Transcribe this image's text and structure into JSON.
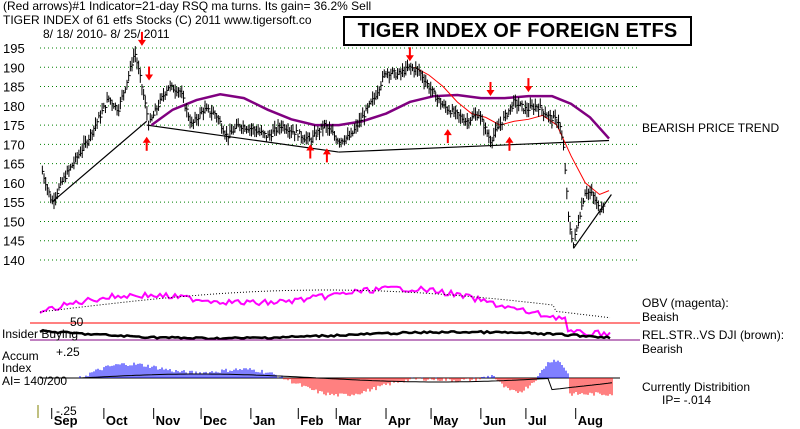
{
  "header": {
    "line1": "(Red arrows)#1 Indicator=21-day RSQ ma turns. Its gain= 36.2% Sell",
    "line2": "TIGER INDEX of  61 etfs Stocks  (C) 2011   www.tigersoft.co",
    "line3": "8/ 18/ 2010- 8/ 25/ 2011"
  },
  "title_box": "TIGER INDEX OF FOREIGN ETFS",
  "annotations": {
    "trend": "BEARISH PRICE TREND",
    "obv_title": "OBV (magenta):",
    "obv_status": "Beaish",
    "relstr_title": "REL.STR..VS DJI (brown):",
    "relstr_status": "Bearish",
    "insider": "Insider Buying",
    "accum_line1": "Accum",
    "accum_line2": "Index",
    "accum_value": "AI= 140/200",
    "dist_line1": "Currently Distribition",
    "dist_line2": "IP= -.014",
    "plus25": "+.25",
    "minus25": "-.25",
    "fifty": "50"
  },
  "colors": {
    "price_bar": "#000000",
    "ma_purple": "#800080",
    "obv_magenta": "#ff00ff",
    "relstr_brown": "#000000",
    "red_line": "#ff0000",
    "accum_blue": "#0000ff",
    "accum_red": "#ff0000",
    "grid_green": "#008000"
  },
  "chart_data": {
    "type": "line",
    "title": "TIGER INDEX OF FOREIGN ETFS",
    "xlabel": "",
    "ylabel": "",
    "ylim": [
      140,
      195
    ],
    "grid": true,
    "y_ticks": [
      140,
      145,
      150,
      155,
      160,
      165,
      170,
      175,
      180,
      185,
      190,
      195
    ],
    "x_ticks": [
      "Sep",
      "Oct",
      "Nov",
      "Dec",
      "Jan",
      "Feb",
      "Mar",
      "Apr",
      "May",
      "Jun",
      "Jul",
      "Aug"
    ],
    "x_tick_pos": [
      0.5,
      1.6,
      2.65,
      3.65,
      4.7,
      5.7,
      6.5,
      7.55,
      8.5,
      9.55,
      10.5,
      11.55
    ],
    "x_range": [
      0,
      12.4
    ],
    "price": {
      "x": [
        0.05,
        0.25,
        0.5,
        0.75,
        1.0,
        1.25,
        1.45,
        1.65,
        1.85,
        2.0,
        2.15,
        2.3,
        2.45,
        2.7,
        2.95,
        3.2,
        3.45,
        3.7,
        3.95,
        4.2,
        4.5,
        4.8,
        5.1,
        5.4,
        5.7,
        6.0,
        6.3,
        6.55,
        6.8,
        7.05,
        7.3,
        7.55,
        7.8,
        8.0,
        8.25,
        8.5,
        8.75,
        9.0,
        9.25,
        9.5,
        9.75,
        10.0,
        10.25,
        10.5,
        10.75,
        10.95,
        11.05,
        11.15,
        11.25,
        11.35,
        11.5,
        11.65,
        11.8,
        11.9
      ],
      "values": [
        163,
        155,
        161,
        166,
        171,
        177,
        182,
        179,
        187,
        194,
        185,
        175,
        179,
        185,
        184,
        175,
        179,
        178,
        172,
        175,
        174,
        172,
        175,
        173,
        171,
        175,
        171,
        172,
        177,
        182,
        189,
        188,
        190,
        189,
        184,
        180,
        178,
        176,
        178,
        171,
        176,
        181,
        179,
        180,
        177,
        176,
        168,
        150,
        144,
        150,
        158,
        157,
        153,
        155
      ]
    },
    "moving_average": {
      "x": [
        2.35,
        2.8,
        3.3,
        3.8,
        4.3,
        4.8,
        5.3,
        5.8,
        6.3,
        6.8,
        7.3,
        7.8,
        8.3,
        8.8,
        9.3,
        9.8,
        10.3,
        10.8,
        11.2,
        11.6,
        12.0
      ],
      "values": [
        175,
        179,
        181.5,
        183,
        182,
        179,
        176.5,
        175,
        175,
        176,
        178,
        181,
        182.5,
        182.8,
        182,
        182,
        182.5,
        182.5,
        180.5,
        177,
        171.5
      ]
    },
    "red_moving_average": {
      "x": [
        7.9,
        8.2,
        8.5,
        8.8,
        9.1,
        9.4,
        9.7,
        10.0,
        10.3,
        10.6,
        10.9,
        11.2,
        11.5,
        11.8,
        12.0
      ],
      "values": [
        190,
        188,
        185,
        181,
        178,
        177,
        175,
        176,
        176.5,
        177.5,
        175,
        167,
        160,
        157,
        158
      ]
    },
    "red_arrows_down": [
      {
        "x": 2.15,
        "y": 194
      },
      {
        "x": 2.3,
        "y": 185
      },
      {
        "x": 7.8,
        "y": 190
      },
      {
        "x": 9.5,
        "y": 181
      },
      {
        "x": 10.3,
        "y": 182
      }
    ],
    "red_arrows_up": [
      {
        "x": 2.25,
        "y": 173
      },
      {
        "x": 5.7,
        "y": 171
      },
      {
        "x": 6.05,
        "y": 170
      },
      {
        "x": 8.6,
        "y": 175
      },
      {
        "x": 9.9,
        "y": 173
      }
    ],
    "trendlines": [
      {
        "x": [
          0.25,
          2.25
        ],
        "values": [
          155,
          176
        ]
      },
      {
        "x": [
          2.25,
          6.3
        ],
        "values": [
          175,
          168
        ]
      },
      {
        "x": [
          6.3,
          12.0
        ],
        "values": [
          168,
          171
        ]
      },
      {
        "x": [
          11.25,
          12.05
        ],
        "values": [
          143,
          157
        ]
      }
    ]
  }
}
